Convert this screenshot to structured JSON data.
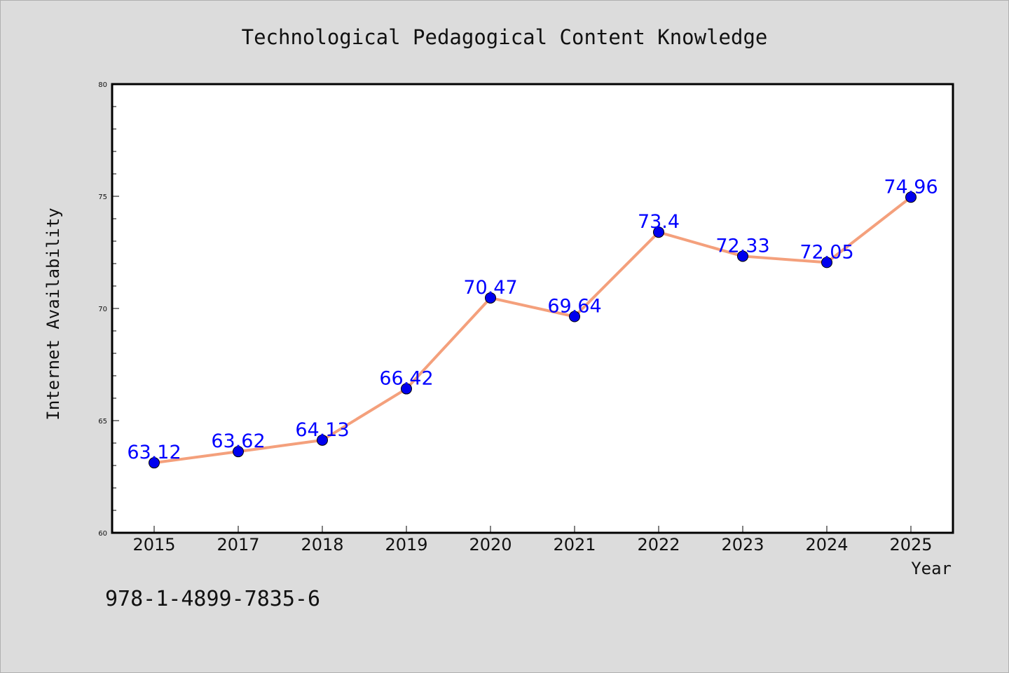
{
  "chart_data": {
    "type": "line",
    "title": "Technological Pedagogical Content Knowledge",
    "xlabel": "Year",
    "ylabel": "Internet Availability",
    "categories": [
      "2015",
      "2017",
      "2018",
      "2019",
      "2020",
      "2021",
      "2022",
      "2023",
      "2024",
      "2025"
    ],
    "series": [
      {
        "values": [
          63.12,
          63.62,
          64.13,
          66.42,
          70.47,
          69.64,
          73.4,
          72.33,
          72.05,
          74.96
        ],
        "data_labels": [
          "63.12",
          "63.62",
          "64.13",
          "66.42",
          "70.47",
          "69.64",
          "73.4",
          "72.33",
          "72.05",
          "74.96"
        ],
        "line_color": "#f4a07c",
        "marker_color": "#0000ee",
        "label_color": "#0000ff"
      }
    ],
    "ylim": [
      60,
      80
    ],
    "yticks": [
      "60",
      "65",
      "70",
      "75",
      "80"
    ],
    "grid": false,
    "legend": "none"
  },
  "footer": {
    "text": "978-1-4899-7835-6"
  },
  "colors": {
    "background": "#dcdcdc",
    "plot_background": "#ffffff"
  }
}
